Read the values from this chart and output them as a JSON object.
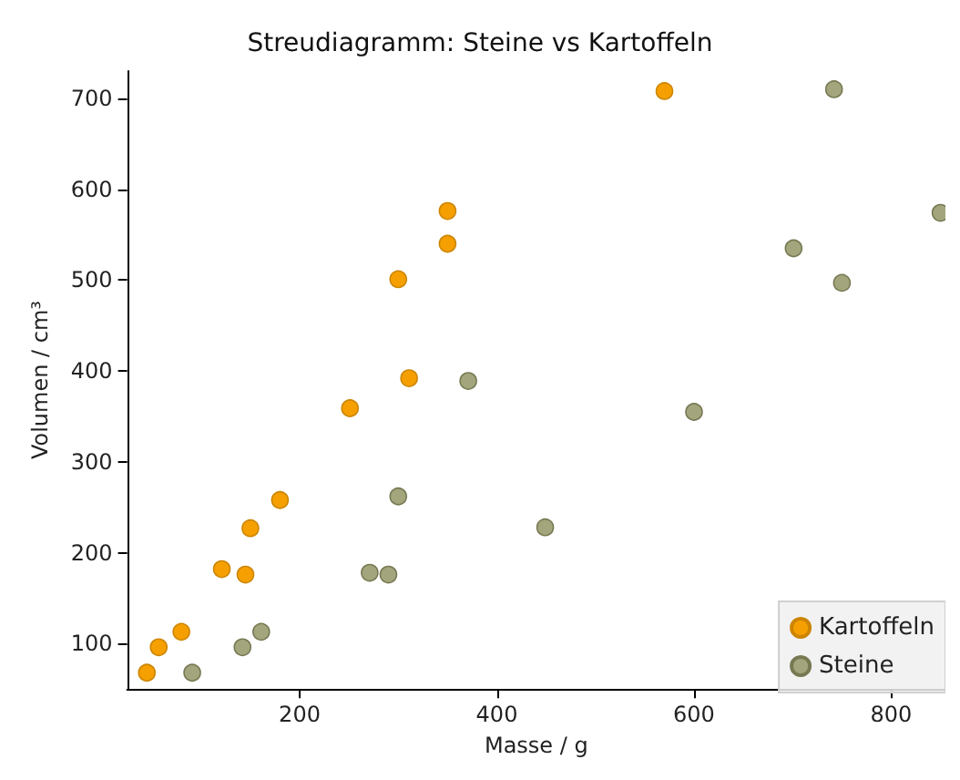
{
  "chart_data": {
    "type": "scatter",
    "title": "Streudiagramm: Steine vs Kartoffeln",
    "xlabel": "Masse / g",
    "ylabel": "Volumen / cm³",
    "xlim": [
      25,
      855
    ],
    "xticks": [
      200,
      400,
      600,
      800
    ],
    "ylim": [
      50,
      730
    ],
    "yticks": [
      100,
      200,
      300,
      400,
      500,
      600,
      700
    ],
    "grid": false,
    "legend": "bottom right",
    "marker": "circle",
    "series": [
      {
        "name": "Kartoffeln",
        "color": "#f5a000",
        "x": [
          45,
          57,
          80,
          121,
          145,
          150,
          180,
          251,
          300,
          311,
          350,
          350,
          570
        ],
        "values": [
          68,
          96,
          113,
          182,
          176,
          227,
          258,
          359,
          501,
          392,
          540,
          576,
          708
        ]
      },
      {
        "name": "Steine",
        "color": "#a3a67c",
        "x": [
          91,
          142,
          161,
          271,
          290,
          300,
          371,
          449,
          600,
          701,
          750,
          742,
          850
        ],
        "values": [
          68,
          96,
          113,
          178,
          176,
          262,
          389,
          228,
          355,
          535,
          497,
          710,
          574
        ]
      }
    ]
  }
}
